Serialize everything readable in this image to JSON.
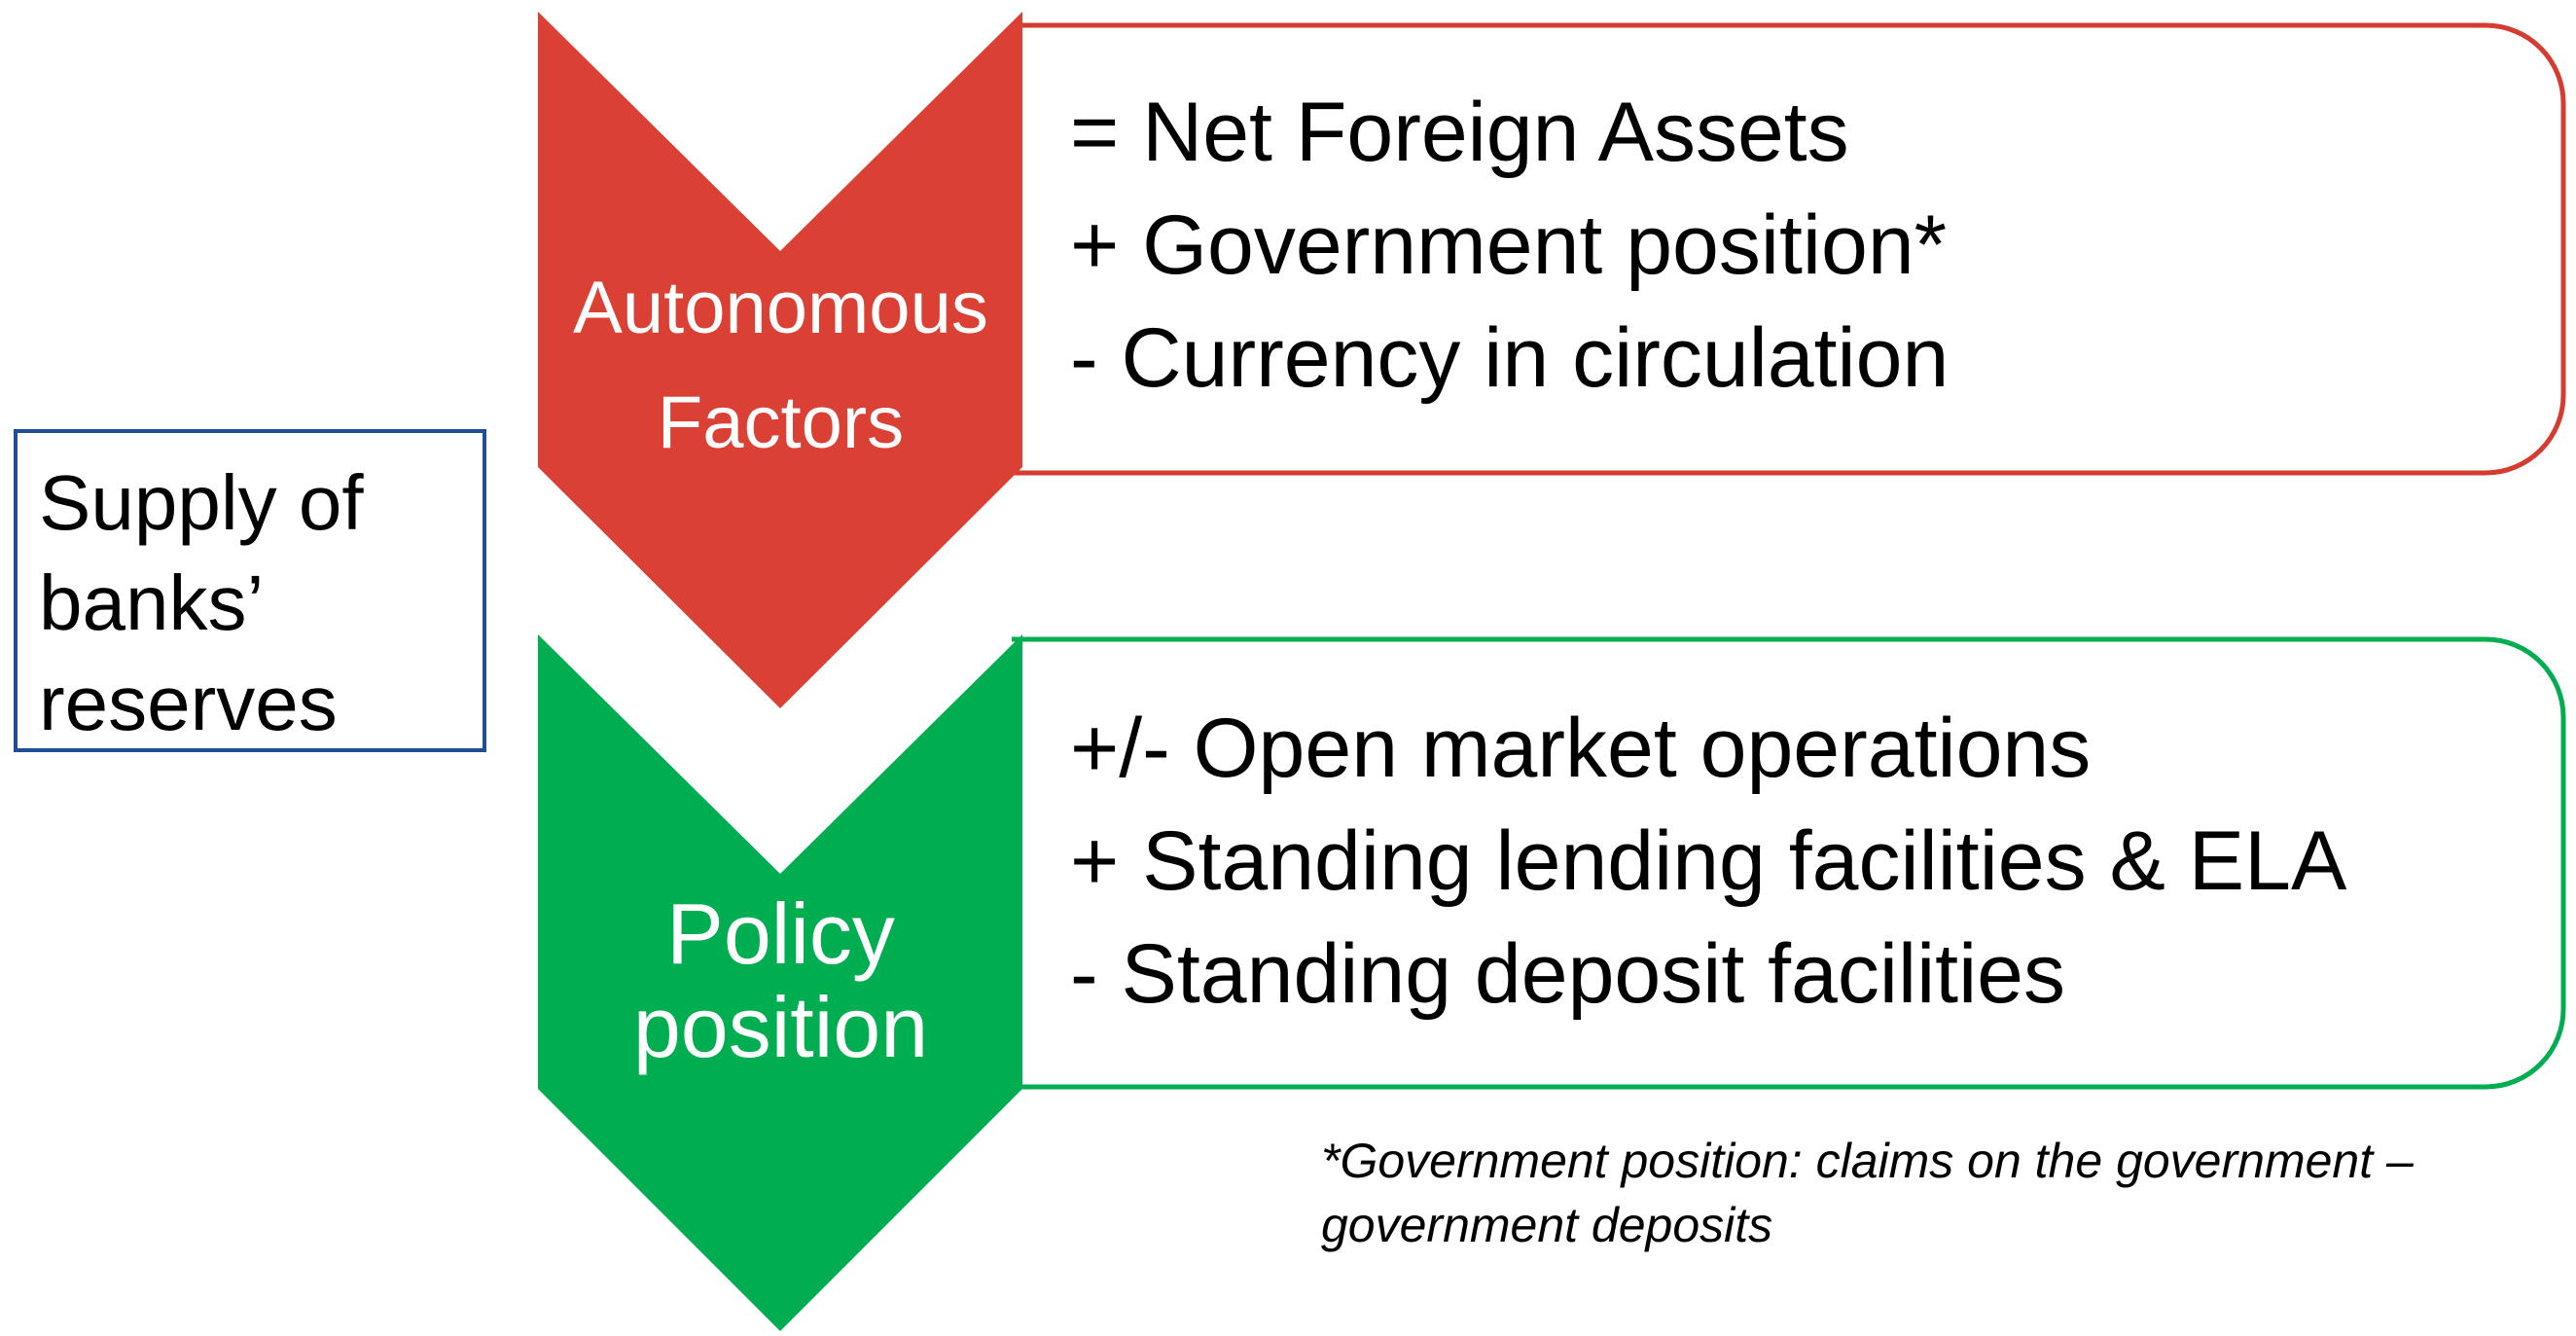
{
  "supply": {
    "lines": [
      "Supply of",
      "banks’",
      "reserves"
    ]
  },
  "autonomous": {
    "label_lines": [
      "Autonomous",
      "Factors"
    ],
    "items": [
      "= Net Foreign Assets",
      "+ Government position*",
      "- Currency in circulation"
    ],
    "color": "#db4034",
    "border_color": "#d63b2f"
  },
  "policy": {
    "label_lines": [
      "Policy",
      "position"
    ],
    "items": [
      "+/- Open market operations",
      "+ Standing lending facilities & ELA",
      "- Standing deposit facilities"
    ],
    "color": "#00ad50",
    "border_color": "#00ad50"
  },
  "footnote": {
    "text": "*Government position: claims on the government – government deposits"
  },
  "colors": {
    "supply_border": "#1f4e96",
    "background": "#ffffff"
  }
}
